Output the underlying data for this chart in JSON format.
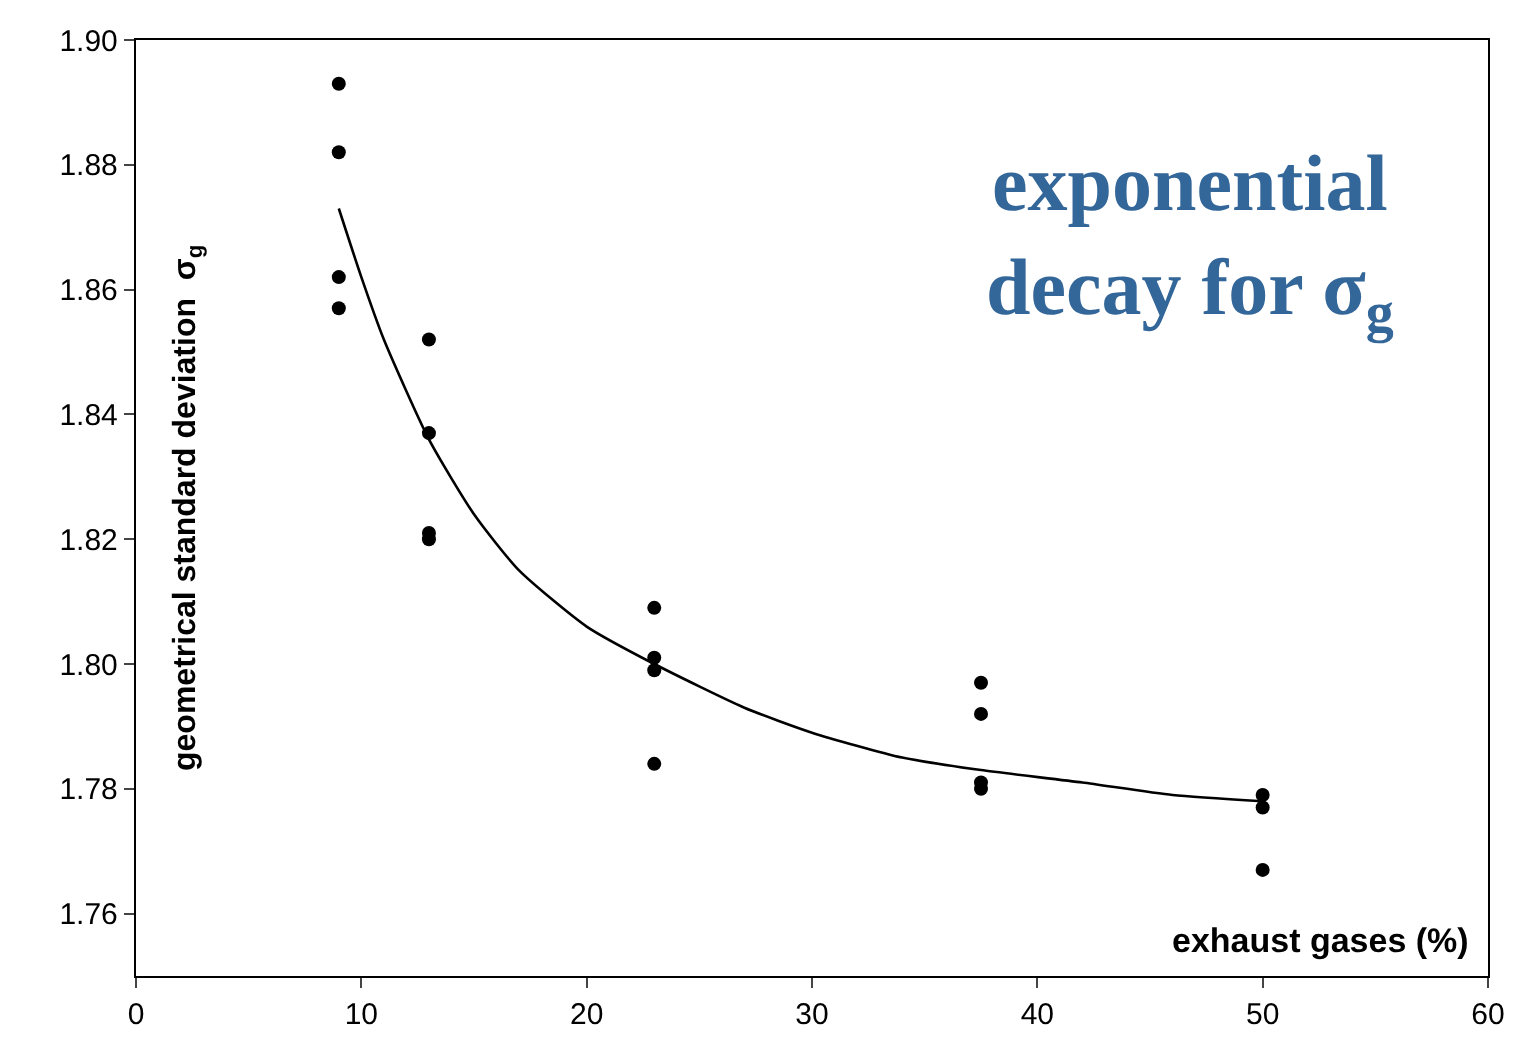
{
  "chart_data": {
    "type": "scatter",
    "xlabel": "exhaust gases (%)",
    "ylabel": "geometrical standard deviation  σ$_{g}$",
    "annotations": [
      "exponential decay for σ$_{g}$"
    ],
    "xlim": [
      0,
      60
    ],
    "xticks": [
      0,
      10,
      20,
      30,
      40,
      50,
      60
    ],
    "ylim": [
      1.75,
      1.9
    ],
    "yticks": [
      {
        "value": 1.76,
        "label": "1.76"
      },
      {
        "value": 1.78,
        "label": "1.78"
      },
      {
        "value": 1.8,
        "label": "1.80"
      },
      {
        "value": 1.82,
        "label": "1.82"
      },
      {
        "value": 1.84,
        "label": "1.84"
      },
      {
        "value": 1.86,
        "label": "1.86"
      },
      {
        "value": 1.88,
        "label": "1.88"
      },
      {
        "value": 1.9,
        "label": "1.90"
      }
    ],
    "marker": "circle",
    "series": [
      {
        "color": "#000000",
        "x": [
          9,
          9,
          9,
          9,
          13,
          13,
          13,
          13,
          23,
          23,
          23,
          23,
          37.5,
          37.5,
          37.5,
          37.5,
          50,
          50,
          50
        ],
        "values": [
          1.893,
          1.882,
          1.862,
          1.857,
          1.852,
          1.837,
          1.821,
          1.82,
          1.809,
          1.801,
          1.799,
          1.784,
          1.797,
          1.792,
          1.781,
          1.78,
          1.779,
          1.777,
          1.767
        ]
      },
      {
        "type": "line",
        "color": "#000000",
        "marker": "none",
        "x": [
          9,
          10,
          11,
          13,
          15,
          17,
          20,
          23,
          27,
          30,
          34,
          37.5,
          42,
          46,
          50
        ],
        "values": [
          1.873,
          1.862,
          1.852,
          1.836,
          1.824,
          1.815,
          1.806,
          1.8,
          1.793,
          1.789,
          1.785,
          1.783,
          1.781,
          1.779,
          1.778
        ]
      }
    ]
  }
}
